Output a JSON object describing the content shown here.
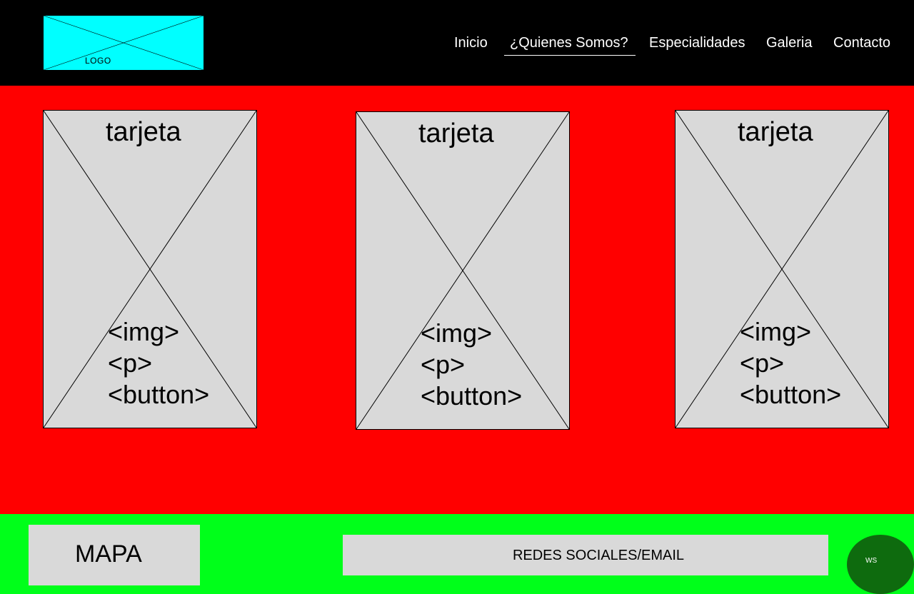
{
  "header": {
    "logo_text": "LOGO",
    "nav": [
      {
        "label": "Inicio"
      },
      {
        "label": "¿Quienes Somos?"
      },
      {
        "label": "Especialidades"
      },
      {
        "label": "Galeria"
      },
      {
        "label": "Contacto"
      }
    ],
    "active_nav": "¿Quienes Somos?"
  },
  "main": {
    "cards": [
      {
        "title": "tarjeta",
        "tags": [
          "<img>",
          "<p>",
          "<button>"
        ]
      },
      {
        "title": "tarjeta",
        "tags": [
          "<img>",
          "<p>",
          "<button>"
        ]
      },
      {
        "title": "tarjeta",
        "tags": [
          "<img>",
          "<p>",
          "<button>"
        ]
      }
    ]
  },
  "footer": {
    "map_label": "MAPA",
    "social_label": "REDES SOCIALES/EMAIL",
    "ws_label": "WS"
  },
  "colors": {
    "header_bg": "#000000",
    "logo_bg": "#00ffff",
    "main_bg": "#ff0000",
    "card_bg": "#d9d9d9",
    "footer_bg": "#00ff1a",
    "ws_bg": "#0e6b0e"
  }
}
